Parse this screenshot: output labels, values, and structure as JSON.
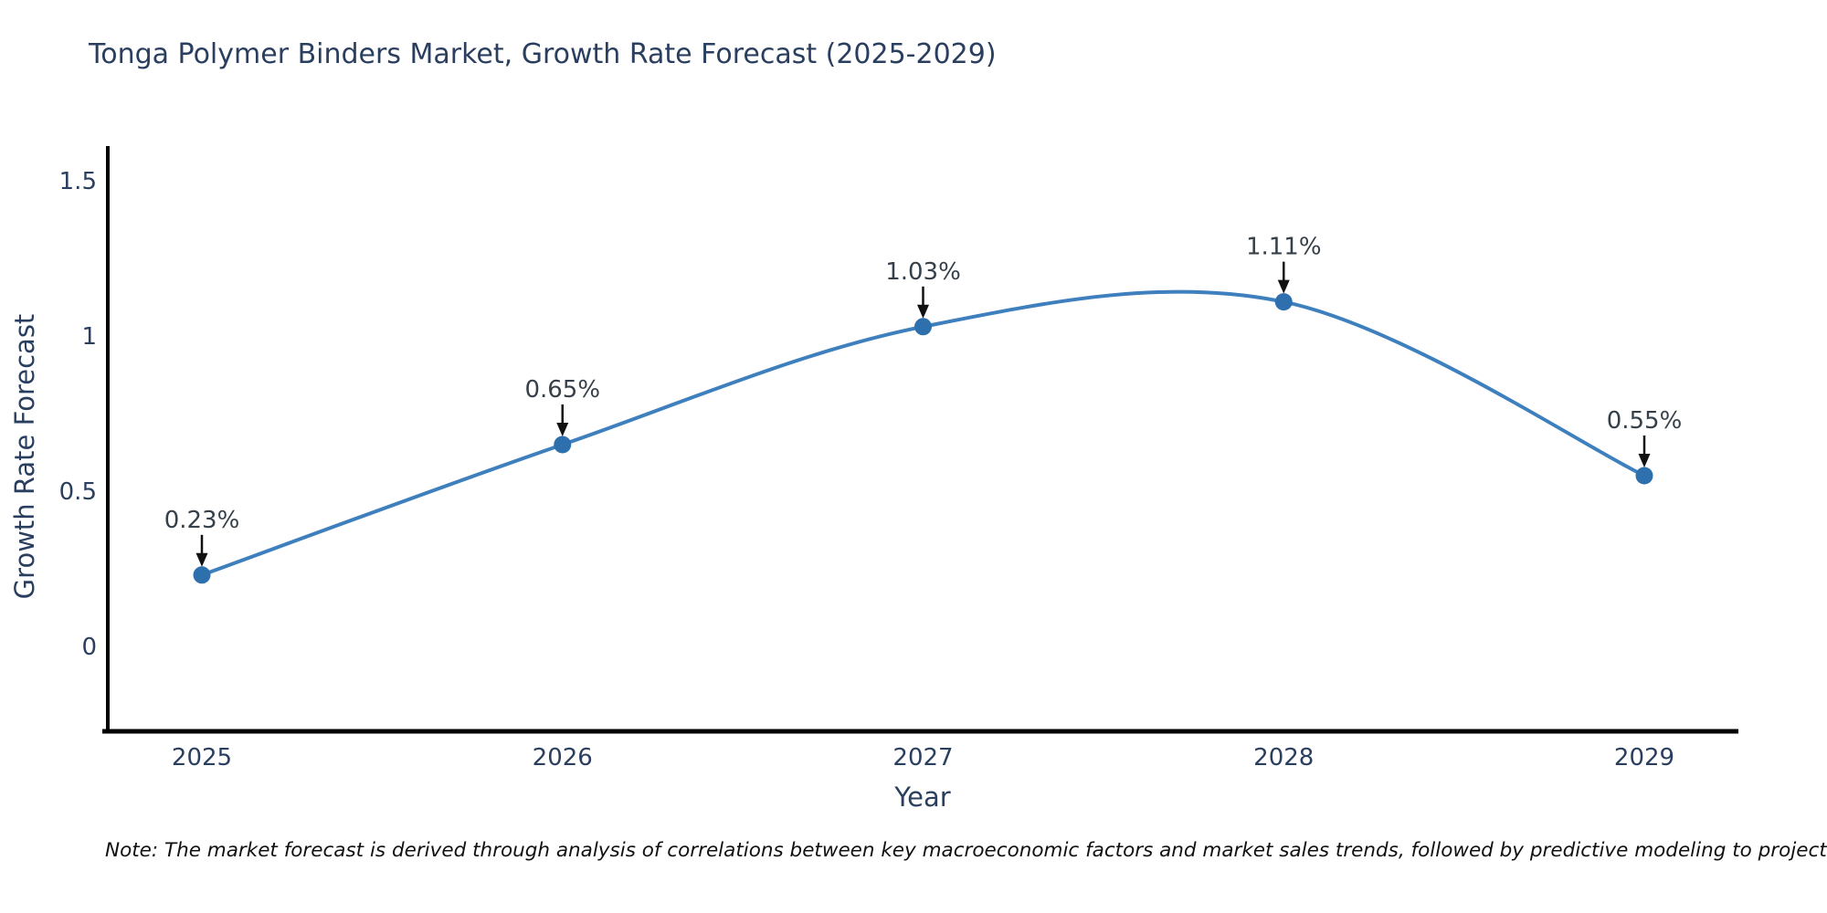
{
  "chart_data": {
    "type": "line",
    "title": "Tonga Polymer Binders Market, Growth Rate Forecast (2025-2029)",
    "xlabel": "Year",
    "ylabel": "Growth Rate Forecast",
    "x": [
      "2025",
      "2026",
      "2027",
      "2028",
      "2029"
    ],
    "series": [
      {
        "name": "Growth Rate Forecast",
        "values": [
          0.23,
          0.65,
          1.03,
          1.11,
          0.55
        ]
      }
    ],
    "point_labels": [
      "0.23%",
      "0.65%",
      "1.03%",
      "1.11%",
      "0.55%"
    ],
    "y_ticks": [
      {
        "value": 0,
        "label": "0"
      },
      {
        "value": 0.5,
        "label": "0.5"
      },
      {
        "value": 1,
        "label": "1"
      },
      {
        "value": 1.5,
        "label": "1.5"
      }
    ],
    "ylim": [
      -0.28,
      1.61
    ],
    "line_shape": "spline",
    "grid": false,
    "legend_position": "none",
    "colors": {
      "line": "#3e7fbe",
      "marker": "#2e6fae",
      "axis_line": "#000000",
      "tick_text": "#2a3f5f",
      "annotation_text": "#36404a",
      "annotation_arrow": "#111111"
    },
    "note": "Note: The market forecast is derived through analysis of correlations between key macroeconomic factors and market sales trends, followed by predictive modeling to project future sales"
  }
}
